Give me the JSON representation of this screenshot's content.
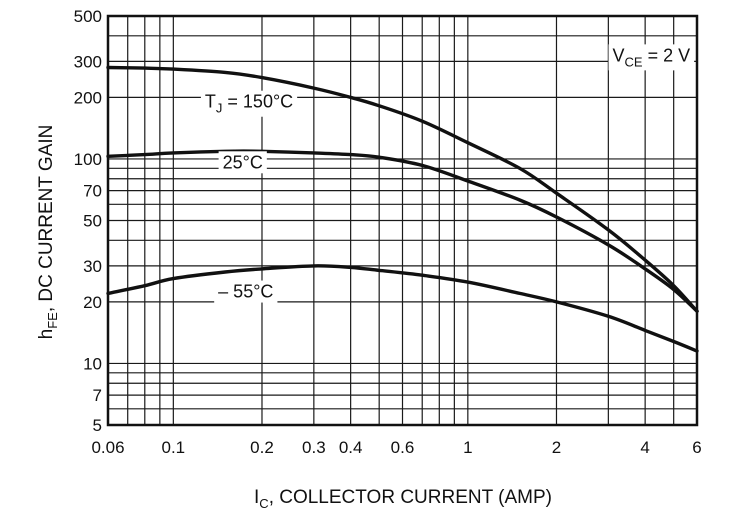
{
  "chart_data": {
    "type": "line",
    "title": "",
    "xscale": "log",
    "yscale": "log",
    "xlim": [
      0.06,
      6
    ],
    "ylim": [
      5,
      500
    ],
    "xlabel": {
      "main": "I",
      "sub": "C",
      "rest": ", COLLECTOR CURRENT (AMP)"
    },
    "ylabel": {
      "main": "h",
      "sub": "FE",
      "rest": ", DC CURRENT GAIN"
    },
    "x_ticks": [
      {
        "value": 0.06,
        "label": "0.06"
      },
      {
        "value": 0.1,
        "label": "0.1"
      },
      {
        "value": 0.2,
        "label": "0.2"
      },
      {
        "value": 0.3,
        "label": "0.3"
      },
      {
        "value": 0.4,
        "label": "0.4"
      },
      {
        "value": 0.6,
        "label": "0.6"
      },
      {
        "value": 1,
        "label": "1"
      },
      {
        "value": 2,
        "label": "2"
      },
      {
        "value": 4,
        "label": "4"
      },
      {
        "value": 6,
        "label": "6"
      }
    ],
    "y_ticks": [
      {
        "value": 5,
        "label": "5"
      },
      {
        "value": 7,
        "label": "7"
      },
      {
        "value": 10,
        "label": "10"
      },
      {
        "value": 20,
        "label": "20"
      },
      {
        "value": 30,
        "label": "30"
      },
      {
        "value": 50,
        "label": "50"
      },
      {
        "value": 70,
        "label": "70"
      },
      {
        "value": 100,
        "label": "100"
      },
      {
        "value": 200,
        "label": "200"
      },
      {
        "value": 300,
        "label": "300"
      },
      {
        "value": 500,
        "label": "500"
      }
    ],
    "x_grid": [
      0.06,
      0.07,
      0.08,
      0.09,
      0.1,
      0.2,
      0.3,
      0.4,
      0.5,
      0.6,
      0.7,
      0.8,
      0.9,
      1,
      2,
      3,
      4,
      5,
      6
    ],
    "y_grid": [
      5,
      6,
      7,
      8,
      9,
      10,
      20,
      30,
      40,
      50,
      60,
      70,
      80,
      90,
      100,
      200,
      300,
      400,
      500
    ],
    "annotations": [
      {
        "id": "vce",
        "main": "V",
        "sub": "CE",
        "rest": " = 2 V",
        "x": 3.1,
        "y": 300
      },
      {
        "id": "label-150",
        "main": "T",
        "sub": "J",
        "rest": " = 150°C",
        "x": 0.128,
        "y": 178
      },
      {
        "id": "label-25",
        "main": "",
        "sub": "",
        "rest": "25°C",
        "x": 0.147,
        "y": 90
      },
      {
        "id": "label-m55",
        "main": "",
        "sub": "",
        "rest": "– 55°C",
        "x": 0.142,
        "y": 21
      }
    ],
    "series": [
      {
        "name": "TJ = 150°C",
        "x": [
          0.06,
          0.08,
          0.1,
          0.15,
          0.2,
          0.3,
          0.4,
          0.5,
          0.7,
          1,
          1.5,
          2,
          3,
          4,
          5,
          6
        ],
        "y": [
          280,
          278,
          275,
          265,
          250,
          222,
          200,
          182,
          153,
          120,
          90,
          68,
          45,
          32,
          24,
          18
        ]
      },
      {
        "name": "25°C",
        "x": [
          0.06,
          0.08,
          0.1,
          0.15,
          0.2,
          0.3,
          0.4,
          0.5,
          0.7,
          1,
          1.5,
          2,
          3,
          4,
          5,
          6
        ],
        "y": [
          103,
          105,
          107,
          109,
          109,
          107,
          105,
          102,
          93,
          78,
          63,
          52,
          38,
          29,
          23,
          18
        ]
      },
      {
        "name": "-55°C",
        "x": [
          0.06,
          0.08,
          0.1,
          0.15,
          0.2,
          0.3,
          0.4,
          0.5,
          0.7,
          1,
          1.5,
          2,
          3,
          4,
          5,
          6
        ],
        "y": [
          22,
          24,
          26,
          28,
          29,
          30,
          29.5,
          28.5,
          27,
          25,
          22,
          20,
          17,
          14.5,
          12.8,
          11.5
        ]
      }
    ]
  }
}
